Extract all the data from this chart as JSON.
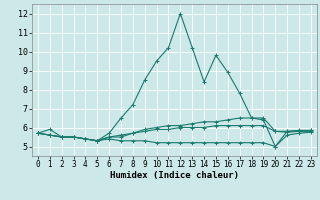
{
  "title": "",
  "xlabel": "Humidex (Indice chaleur)",
  "background_color": "#cce8e8",
  "grid_color": "#ffffff",
  "line_color": "#1a7a6e",
  "xlim": [
    -0.5,
    23.5
  ],
  "ylim": [
    4.5,
    12.5
  ],
  "yticks": [
    5,
    6,
    7,
    8,
    9,
    10,
    11,
    12
  ],
  "xticks": [
    0,
    1,
    2,
    3,
    4,
    5,
    6,
    7,
    8,
    9,
    10,
    11,
    12,
    13,
    14,
    15,
    16,
    17,
    18,
    19,
    20,
    21,
    22,
    23
  ],
  "series": [
    [
      5.7,
      5.9,
      5.5,
      5.5,
      5.4,
      5.3,
      5.7,
      6.5,
      7.2,
      8.5,
      9.5,
      10.2,
      12.0,
      10.2,
      8.4,
      9.8,
      8.9,
      7.8,
      6.5,
      6.4,
      5.0,
      5.8,
      5.8,
      5.8
    ],
    [
      5.7,
      5.6,
      5.5,
      5.5,
      5.4,
      5.3,
      5.5,
      5.5,
      5.7,
      5.9,
      6.0,
      6.1,
      6.1,
      6.2,
      6.3,
      6.3,
      6.4,
      6.5,
      6.5,
      6.5,
      5.8,
      5.8,
      5.85,
      5.85
    ],
    [
      5.7,
      5.6,
      5.5,
      5.5,
      5.4,
      5.3,
      5.4,
      5.3,
      5.3,
      5.3,
      5.2,
      5.2,
      5.2,
      5.2,
      5.2,
      5.2,
      5.2,
      5.2,
      5.2,
      5.2,
      5.0,
      5.6,
      5.7,
      5.75
    ],
    [
      5.7,
      5.6,
      5.5,
      5.5,
      5.4,
      5.3,
      5.5,
      5.6,
      5.7,
      5.8,
      5.9,
      5.9,
      6.0,
      6.0,
      6.0,
      6.1,
      6.1,
      6.1,
      6.1,
      6.1,
      5.8,
      5.75,
      5.8,
      5.85
    ]
  ],
  "xlabel_fontsize": 6.5,
  "tick_fontsize": 5.5
}
